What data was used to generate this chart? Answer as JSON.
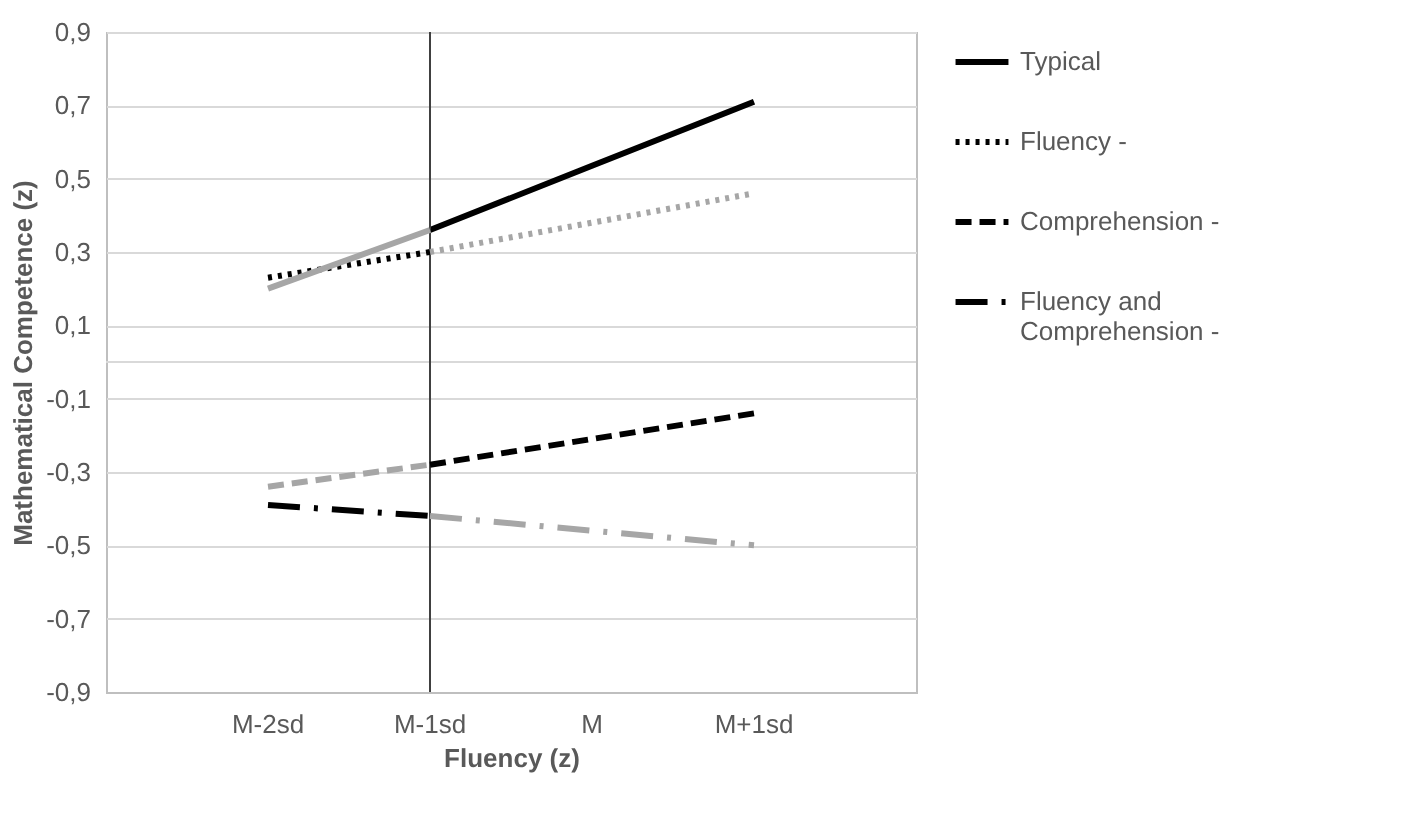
{
  "chart_data": {
    "type": "line",
    "xlabel": "Fluency (z)",
    "ylabel": "Mathematical Competence (z)",
    "categories": [
      "M-2sd",
      "M-1sd",
      "M",
      "M+1sd"
    ],
    "series": [
      {
        "name": "Typical",
        "color": "#000000",
        "line_style": "solid",
        "values": [
          null,
          0.36,
          0.535,
          0.71
        ]
      },
      {
        "name": "Fluency -",
        "color": "#000000",
        "line_style": "dotted",
        "values": [
          0.23,
          0.3,
          null,
          null
        ]
      },
      {
        "name": "Comprehension -",
        "color": "#000000",
        "line_style": "dashed",
        "values": [
          null,
          -0.28,
          -0.21,
          -0.14
        ]
      },
      {
        "name": "Fluency and Comprehension -",
        "color": "#000000",
        "line_style": "dashdot",
        "values": [
          -0.39,
          -0.42,
          null,
          null
        ]
      },
      {
        "color": "#a6a6a6",
        "line_style": "solid",
        "values": [
          0.2,
          0.36,
          null,
          null
        ]
      },
      {
        "color": "#a6a6a6",
        "line_style": "dotted",
        "values": [
          null,
          0.3,
          0.38,
          0.46
        ]
      },
      {
        "color": "#a6a6a6",
        "line_style": "dashed",
        "values": [
          -0.34,
          -0.28,
          null,
          null
        ]
      },
      {
        "color": "#a6a6a6",
        "line_style": "dashdot",
        "values": [
          null,
          -0.42,
          -0.46,
          -0.5
        ]
      }
    ],
    "ylim": [
      -0.9,
      0.9
    ],
    "yticks": [
      {
        "value": -0.9,
        "label": "-0,9"
      },
      {
        "value": -0.7,
        "label": "-0,7"
      },
      {
        "value": -0.5,
        "label": "-0,5"
      },
      {
        "value": -0.3,
        "label": "-0,3"
      },
      {
        "value": -0.1,
        "label": "-0,1"
      },
      {
        "value": 0.1,
        "label": "0,1"
      },
      {
        "value": 0.3,
        "label": "0,3"
      },
      {
        "value": 0.5,
        "label": "0,5"
      },
      {
        "value": 0.7,
        "label": "0,7"
      },
      {
        "value": 0.9,
        "label": "0,9"
      }
    ],
    "grid": "y",
    "legend": "right",
    "ref_lines": [
      {
        "axis": "x",
        "value": "M-1sd",
        "color": "#404040"
      },
      {
        "axis": "y",
        "value": 0,
        "color": "#d9d9d9"
      }
    ]
  }
}
